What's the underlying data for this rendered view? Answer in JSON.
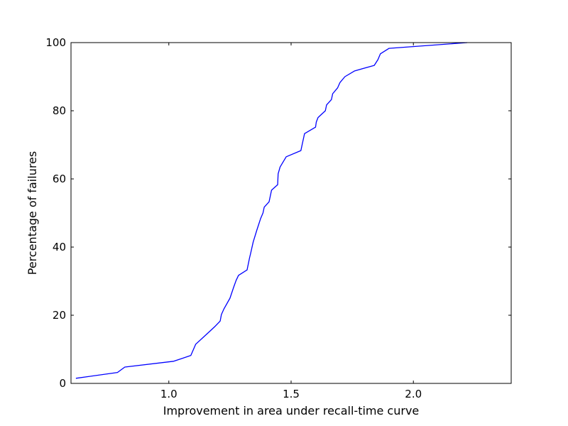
{
  "chart_data": {
    "type": "line",
    "title": "",
    "xlabel": "Improvement in area under recall-time curve",
    "ylabel": "Percentage of failures",
    "xlim": [
      0.6,
      2.4
    ],
    "ylim": [
      0,
      100
    ],
    "xticks": [
      1.0,
      1.5,
      2.0
    ],
    "xtick_labels": [
      "1.0",
      "1.5",
      "2.0"
    ],
    "yticks": [
      0,
      20,
      40,
      60,
      80,
      100
    ],
    "ytick_labels": [
      "0",
      "20",
      "40",
      "60",
      "80",
      "100"
    ],
    "grid": false,
    "legend": "none",
    "line_color": "#0000ff",
    "series": [
      {
        "x": [
          0.62,
          0.79,
          0.82,
          1.02,
          1.09,
          1.11,
          1.16,
          1.19,
          1.21,
          1.215,
          1.225,
          1.25,
          1.265,
          1.275,
          1.285,
          1.32,
          1.33,
          1.335,
          1.345,
          1.36,
          1.375,
          1.385,
          1.39,
          1.41,
          1.415,
          1.42,
          1.445,
          1.447,
          1.455,
          1.48,
          1.54,
          1.545,
          1.555,
          1.6,
          1.603,
          1.61,
          1.64,
          1.645,
          1.665,
          1.67,
          1.69,
          1.7,
          1.72,
          1.76,
          1.84,
          1.855,
          1.865,
          1.9,
          2.22
        ],
        "y": [
          1.5,
          3.2,
          4.8,
          6.5,
          8.2,
          11.5,
          14.8,
          16.8,
          18.3,
          20.2,
          21.8,
          25.0,
          28.2,
          30.2,
          31.7,
          33.3,
          36.8,
          38.3,
          41.5,
          45.0,
          48.3,
          50.0,
          51.7,
          53.3,
          55.0,
          56.7,
          58.3,
          61.5,
          63.5,
          66.5,
          68.3,
          70.0,
          73.3,
          75.2,
          76.7,
          78.0,
          80.0,
          81.7,
          83.3,
          85.0,
          86.7,
          88.3,
          90.0,
          91.7,
          93.3,
          95.0,
          96.7,
          98.3,
          100.0
        ]
      }
    ]
  }
}
